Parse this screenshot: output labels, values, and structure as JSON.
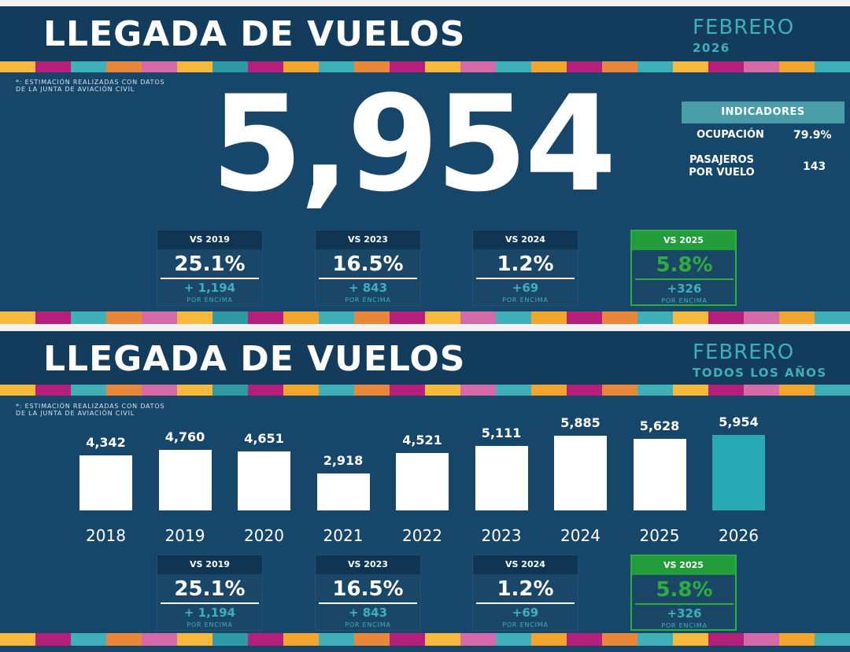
{
  "colors": {
    "panel": "#16476a",
    "header": "#133c5c",
    "accent_teal": "#3fb0b8",
    "highlight_green": "#2fae3e",
    "bar_default": "#ffffff",
    "bar_highlight": "#29a9b4",
    "stripe": [
      "#f6b93b",
      "#b51e7a",
      "#3fb0b8",
      "#e8873a",
      "#d66aa8",
      "#f6b93b",
      "#2f9aa4",
      "#b51e7a",
      "#f4a52e",
      "#3fb0b8",
      "#e8873a",
      "#b51e7a",
      "#f6b93b",
      "#d66aa8",
      "#3fb0b8",
      "#f4a52e",
      "#b51e7a",
      "#e8873a",
      "#3fb0b8",
      "#f6b93b",
      "#b51e7a",
      "#d66aa8",
      "#f4a52e",
      "#3fb0b8"
    ]
  },
  "top": {
    "title": "LLEGADA DE VUELOS",
    "month": "FEBRERO",
    "sub": "2026",
    "note_line1": "*: ESTIMACIÓN REALIZADAS CON DATOS",
    "note_line2": "DE LA JUNTA DE AVIACIÓN CIVIL",
    "big_number": "5,954",
    "indicators": {
      "header": "INDICADORES",
      "occupancy_label": "OCUPACIÓN",
      "occupancy_value": "79.9%",
      "pax_label_line1": "PASAJEROS",
      "pax_label_line2": "POR VUELO",
      "pax_value": "143"
    }
  },
  "bottom": {
    "title": "LLEGADA DE VUELOS",
    "month": "FEBRERO",
    "sub": "TODOS LOS AÑOS",
    "note_line1": "*: ESTIMACIÓN REALIZADAS CON DATOS",
    "note_line2": "DE LA JUNTA DE AVIACIÓN CIVIL"
  },
  "comparisons": [
    {
      "label": "VS 2019",
      "pct": "25.1%",
      "delta": "+ 1,194",
      "foot": "POR ENCIMA",
      "highlight": false
    },
    {
      "label": "VS 2023",
      "pct": "16.5%",
      "delta": "+ 843",
      "foot": "POR ENCIMA",
      "highlight": false
    },
    {
      "label": "VS 2024",
      "pct": "1.2%",
      "delta": "+69",
      "foot": "POR ENCIMA",
      "highlight": false
    },
    {
      "label": "VS 2025",
      "pct": "5.8%",
      "delta": "+326",
      "foot": "POR ENCIMA",
      "highlight": true
    }
  ],
  "chart_data": {
    "type": "bar",
    "categories": [
      "2018",
      "2019",
      "2020",
      "2021",
      "2022",
      "2023",
      "2024",
      "2025",
      "2026"
    ],
    "values": [
      4342,
      4760,
      4651,
      2918,
      4521,
      5111,
      5885,
      5628,
      5954
    ],
    "value_labels": [
      "4,342",
      "4,760",
      "4,651",
      "2,918",
      "4,521",
      "5,111",
      "5,885",
      "5,628",
      "5,954"
    ],
    "highlight_category": "2026",
    "title": "",
    "xlabel": "",
    "ylabel": "",
    "grid": false,
    "legend": "none"
  }
}
